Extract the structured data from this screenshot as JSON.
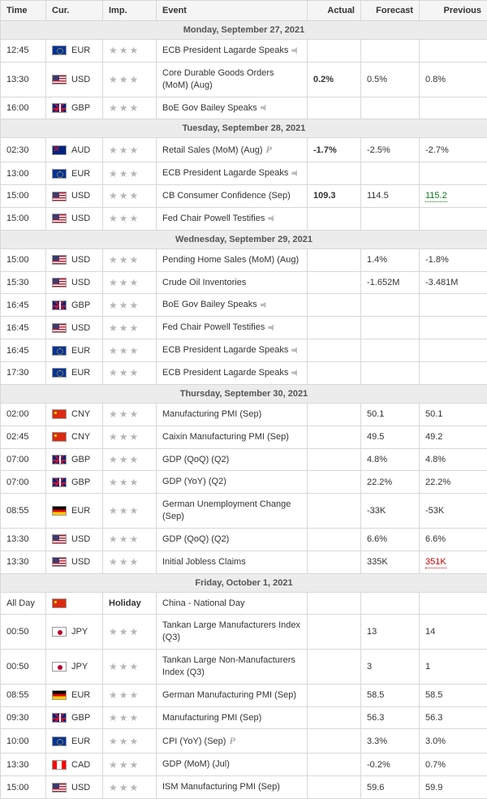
{
  "columns": {
    "time": "Time",
    "cur": "Cur.",
    "imp": "Imp.",
    "event": "Event",
    "actual": "Actual",
    "forecast": "Forecast",
    "previous": "Previous"
  },
  "star_glyph": "★",
  "days": [
    {
      "label": "Monday, September 27, 2021",
      "rows": [
        {
          "time": "12:45",
          "flag": "eur",
          "cur": "EUR",
          "stars": 3,
          "event": "ECB President Lagarde Speaks",
          "audio": true,
          "actual": "",
          "forecast": "",
          "previous": ""
        },
        {
          "time": "13:30",
          "flag": "usd",
          "cur": "USD",
          "stars": 3,
          "event": "Core Durable Goods Orders (MoM) (Aug)",
          "actual": "0.2%",
          "actual_class": "red",
          "forecast": "0.5%",
          "previous": "0.8%"
        },
        {
          "time": "16:00",
          "flag": "gbp",
          "cur": "GBP",
          "stars": 3,
          "event": "BoE Gov Bailey Speaks",
          "audio": true
        }
      ]
    },
    {
      "label": "Tuesday, September 28, 2021",
      "rows": [
        {
          "time": "02:30",
          "flag": "aud",
          "cur": "AUD",
          "stars": 3,
          "event": "Retail Sales (MoM) (Aug)",
          "prelim": true,
          "actual": "-1.7%",
          "actual_class": "green",
          "forecast": "-2.5%",
          "previous": "-2.7%"
        },
        {
          "time": "13:00",
          "flag": "eur",
          "cur": "EUR",
          "stars": 3,
          "event": "ECB President Lagarde Speaks",
          "audio": true
        },
        {
          "time": "15:00",
          "flag": "usd",
          "cur": "USD",
          "stars": 3,
          "event": "CB Consumer Confidence (Sep)",
          "actual": "109.3",
          "actual_class": "red",
          "forecast": "114.5",
          "previous": "115.2",
          "previous_class": "prev-green-dotted"
        },
        {
          "time": "15:00",
          "flag": "usd",
          "cur": "USD",
          "stars": 3,
          "event": "Fed Chair Powell Testifies",
          "audio": true
        }
      ]
    },
    {
      "label": "Wednesday, September 29, 2021",
      "rows": [
        {
          "time": "15:00",
          "flag": "usd",
          "cur": "USD",
          "stars": 3,
          "event": "Pending Home Sales (MoM) (Aug)",
          "forecast": "1.4%",
          "previous": "-1.8%"
        },
        {
          "time": "15:30",
          "flag": "usd",
          "cur": "USD",
          "stars": 3,
          "event": "Crude Oil Inventories",
          "forecast": "-1.652M",
          "previous": "-3.481M"
        },
        {
          "time": "16:45",
          "flag": "gbp",
          "cur": "GBP",
          "stars": 3,
          "event": "BoE Gov Bailey Speaks",
          "audio": true
        },
        {
          "time": "16:45",
          "flag": "usd",
          "cur": "USD",
          "stars": 3,
          "event": "Fed Chair Powell Testifies",
          "audio": true
        },
        {
          "time": "16:45",
          "flag": "eur",
          "cur": "EUR",
          "stars": 3,
          "event": "ECB President Lagarde Speaks",
          "audio": true
        },
        {
          "time": "17:30",
          "flag": "eur",
          "cur": "EUR",
          "stars": 3,
          "event": "ECB President Lagarde Speaks",
          "audio": true
        }
      ]
    },
    {
      "label": "Thursday, September 30, 2021",
      "rows": [
        {
          "time": "02:00",
          "flag": "cny",
          "cur": "CNY",
          "stars": 3,
          "event": "Manufacturing PMI (Sep)",
          "forecast": "50.1",
          "previous": "50.1"
        },
        {
          "time": "02:45",
          "flag": "cny",
          "cur": "CNY",
          "stars": 3,
          "event": "Caixin Manufacturing PMI (Sep)",
          "forecast": "49.5",
          "previous": "49.2"
        },
        {
          "time": "07:00",
          "flag": "gbp",
          "cur": "GBP",
          "stars": 3,
          "event": "GDP (QoQ) (Q2)",
          "forecast": "4.8%",
          "previous": "4.8%"
        },
        {
          "time": "07:00",
          "flag": "gbp",
          "cur": "GBP",
          "stars": 3,
          "event": "GDP (YoY) (Q2)",
          "forecast": "22.2%",
          "previous": "22.2%"
        },
        {
          "time": "08:55",
          "flag": "de",
          "cur": "EUR",
          "stars": 3,
          "event": "German Unemployment Change (Sep)",
          "forecast": "-33K",
          "previous": "-53K"
        },
        {
          "time": "13:30",
          "flag": "usd",
          "cur": "USD",
          "stars": 3,
          "event": "GDP (QoQ) (Q2)",
          "forecast": "6.6%",
          "previous": "6.6%"
        },
        {
          "time": "13:30",
          "flag": "usd",
          "cur": "USD",
          "stars": 3,
          "event": "Initial Jobless Claims",
          "forecast": "335K",
          "previous": "351K",
          "previous_class": "prev-red-dotted"
        }
      ]
    },
    {
      "label": "Friday, October 1, 2021",
      "rows": [
        {
          "time": "All Day",
          "flag": "cny",
          "cur": "",
          "holiday": "Holiday",
          "event": "China - National Day"
        },
        {
          "time": "00:50",
          "flag": "jpy",
          "cur": "JPY",
          "stars": 3,
          "event": "Tankan Large Manufacturers Index (Q3)",
          "forecast": "13",
          "previous": "14"
        },
        {
          "time": "00:50",
          "flag": "jpy",
          "cur": "JPY",
          "stars": 3,
          "event": "Tankan Large Non-Manufacturers Index (Q3)",
          "forecast": "3",
          "previous": "1"
        },
        {
          "time": "08:55",
          "flag": "de",
          "cur": "EUR",
          "stars": 3,
          "event": "German Manufacturing PMI (Sep)",
          "forecast": "58.5",
          "previous": "58.5"
        },
        {
          "time": "09:30",
          "flag": "gbp",
          "cur": "GBP",
          "stars": 3,
          "event": "Manufacturing PMI (Sep)",
          "forecast": "56.3",
          "previous": "56.3"
        },
        {
          "time": "10:00",
          "flag": "eur",
          "cur": "EUR",
          "stars": 3,
          "event": "CPI (YoY) (Sep)",
          "prelim": true,
          "forecast": "3.3%",
          "previous": "3.0%"
        },
        {
          "time": "13:30",
          "flag": "cad",
          "cur": "CAD",
          "stars": 3,
          "event": "GDP (MoM) (Jul)",
          "forecast": "-0.2%",
          "previous": "0.7%"
        },
        {
          "time": "15:00",
          "flag": "usd",
          "cur": "USD",
          "stars": 3,
          "event": "ISM Manufacturing PMI (Sep)",
          "forecast": "59.6",
          "previous": "59.9"
        }
      ]
    }
  ]
}
